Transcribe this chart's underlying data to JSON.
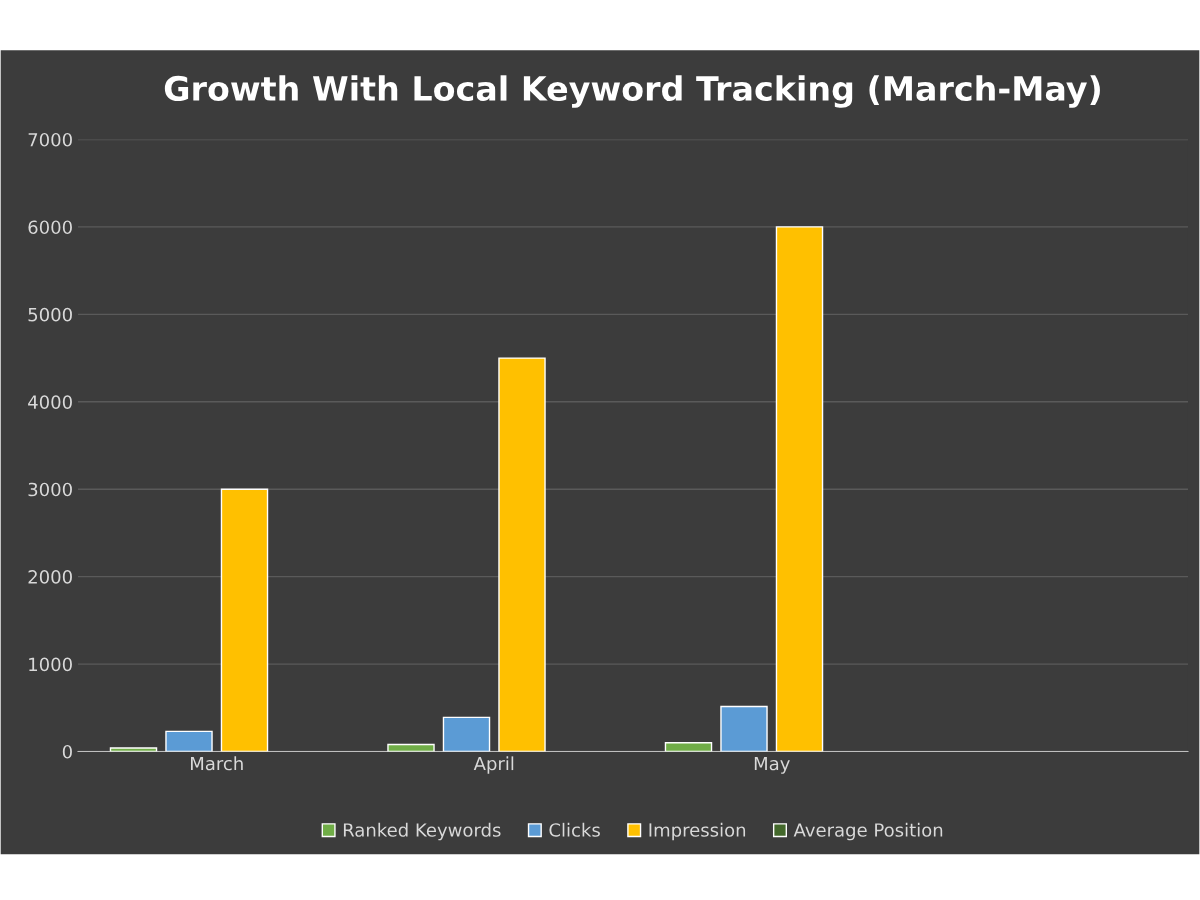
{
  "chart_data": {
    "type": "bar",
    "title": "Growth With Local Keyword Tracking (March-May)",
    "categories": [
      "March",
      "April",
      "May",
      null
    ],
    "series": [
      {
        "name": "Ranked Keywords",
        "color": "#70ad47",
        "values": [
          40,
          80,
          100,
          null
        ]
      },
      {
        "name": "Clicks",
        "color": "#5b9bd5",
        "values": [
          230,
          390,
          515,
          null
        ]
      },
      {
        "name": "Impression",
        "color": "#ffc000",
        "values": [
          3000,
          4500,
          6000,
          null
        ]
      },
      {
        "name": "Average Position",
        "color": "#43682b",
        "values": [
          null,
          null,
          null,
          null
        ]
      }
    ],
    "ylim": [
      0,
      7000
    ],
    "yticks": [
      0,
      1000,
      2000,
      3000,
      4000,
      5000,
      6000,
      7000
    ],
    "grid": "y",
    "legend": "bottom"
  }
}
